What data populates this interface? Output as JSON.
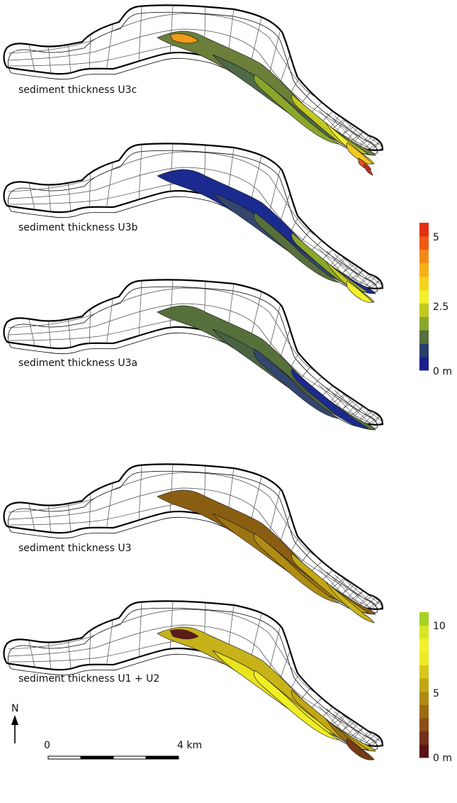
{
  "panels": [
    {
      "label": "sediment thickness U3c",
      "scale": "upper",
      "fill_colors": [
        "#6b7f3a",
        "#4f6a46",
        "#8ba72b",
        "#c3c920",
        "#f1f12a",
        "#f5c820",
        "#f29a1a",
        "#e8521a",
        "#cc2a12"
      ]
    },
    {
      "label": "sediment thickness U3b",
      "scale": "upper",
      "fill_colors": [
        "#1b2a8e",
        "#34466e",
        "#56703c",
        "#8ba72b",
        "#c3c920",
        "#f1f12a"
      ]
    },
    {
      "label": "sediment thickness U3a",
      "scale": "upper",
      "fill_colors": [
        "#56703c",
        "#4a6343",
        "#34466e",
        "#1b2a8e"
      ]
    },
    {
      "label": "sediment thickness U3",
      "scale": "lower",
      "fill_colors": [
        "#8a5e12",
        "#9c7412",
        "#b08c12",
        "#c2a714",
        "#c9b41a"
      ]
    },
    {
      "label": "sediment thickness U1 + U2",
      "scale": "lower",
      "fill_colors": [
        "#c7b21a",
        "#e9e31e",
        "#f0ee24",
        "#c2a714",
        "#9c6e12",
        "#7a3a14",
        "#5e1a16"
      ]
    }
  ],
  "legend_upper": {
    "unit": "m",
    "tick_labels": [
      "5",
      "2.5",
      "0 m"
    ],
    "colors": [
      "#1b1d8a",
      "#2a3e6e",
      "#56703c",
      "#8ba72b",
      "#c3c920",
      "#f1f12a",
      "#f5d21e",
      "#f5b016",
      "#f38a18",
      "#ef5a14",
      "#e43010"
    ]
  },
  "legend_lower": {
    "unit": "m",
    "tick_labels": [
      "10",
      "5",
      "0 m"
    ],
    "colors": [
      "#5a1416",
      "#73311a",
      "#8a4e16",
      "#9c6a12",
      "#b08a12",
      "#c2a714",
      "#d7c81a",
      "#ecea22",
      "#f3f02a",
      "#d6e824",
      "#a8d222"
    ]
  },
  "north_arrow": {
    "label": "N"
  },
  "scale_bar": {
    "start_label": "0",
    "end_label": "4 km"
  },
  "colors": {
    "outline": "#000000",
    "grid": "#555555",
    "contour": "#222222"
  }
}
